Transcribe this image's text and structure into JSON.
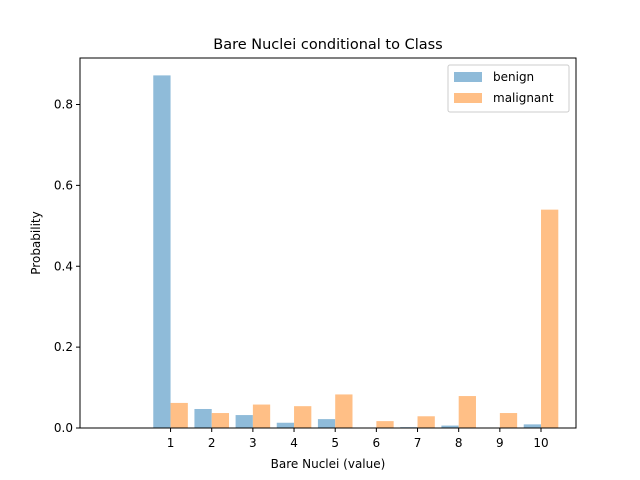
{
  "chart_data": {
    "type": "bar",
    "title": "Bare Nuclei conditional to Class",
    "xlabel": "Bare Nuclei (value)",
    "ylabel": "Probability",
    "categories": [
      "1",
      "2",
      "3",
      "4",
      "5",
      "6",
      "7",
      "8",
      "9",
      "10"
    ],
    "x": [
      1,
      2,
      3,
      4,
      5,
      6,
      7,
      8,
      9,
      10
    ],
    "xlim": [
      -1.2,
      10.85
    ],
    "ylim": [
      0,
      0.915
    ],
    "yticks": [
      "0.0",
      "0.2",
      "0.4",
      "0.6",
      "0.8"
    ],
    "ytick_values": [
      0,
      0.2,
      0.4,
      0.6,
      0.8
    ],
    "grid": false,
    "legend_position": "top-right",
    "series": [
      {
        "name": "benign",
        "color": "#8fbbd9",
        "values": [
          0.872,
          0.047,
          0.032,
          0.013,
          0.022,
          0.0,
          0.002,
          0.006,
          0.0,
          0.009
        ]
      },
      {
        "name": "malignant",
        "color": "#ffbf86",
        "values": [
          0.062,
          0.037,
          0.058,
          0.054,
          0.083,
          0.017,
          0.029,
          0.079,
          0.037,
          0.54
        ]
      }
    ]
  }
}
